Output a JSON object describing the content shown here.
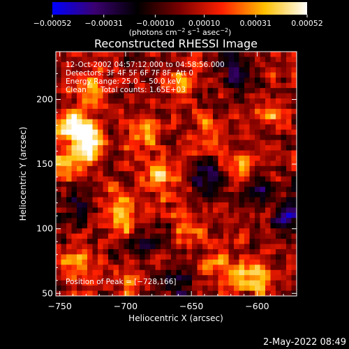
{
  "chart_data": {
    "type": "heatmap",
    "title": "Reconstructed RHESSI Image",
    "xlabel": "Heliocentric X (arcsec)",
    "ylabel": "Heliocentric Y (arcsec)",
    "xlim": [
      -753,
      -570
    ],
    "ylim": [
      48,
      237
    ],
    "x_ticks": [
      -750,
      -700,
      -650,
      -600
    ],
    "y_ticks": [
      50,
      100,
      150,
      200
    ],
    "x_tick_labels": [
      "−750",
      "−700",
      "−650",
      "−600"
    ],
    "y_tick_labels": [
      "50",
      "100",
      "150",
      "200"
    ],
    "colorbar": {
      "range": [
        -0.00052,
        0.00052
      ],
      "ticks": [
        -0.00052,
        -0.00031,
        -0.0001,
        0.0001,
        0.00031,
        0.00052
      ],
      "tick_labels": [
        "−0.00052",
        "−0.00031",
        "−0.00010",
        "0.00010",
        "0.00031",
        "0.00052"
      ],
      "colors": [
        "#0000ff",
        "#3a0070",
        "#000000",
        "#7a0000",
        "#ff2000",
        "#ffc000",
        "#ffffff"
      ],
      "unit_line1": "(photons cm",
      "unit_exp1": "−2",
      "unit_mid1": " s",
      "unit_exp2": "−1",
      "unit_mid2": " asec",
      "unit_exp3": "−2",
      "unit_end": ")"
    },
    "annotations": {
      "time_range": "12-Oct-2002 04:57:12.000 to 04:58:56.000",
      "detectors": "Detectors: 3F 4F 5F 6F 7F 8F, Att 0",
      "energy": "Energy Range: 25.0 − 50.0 keV",
      "method": "Clean",
      "counts": "Total counts: 1.65E+03",
      "peak": "Position of Peak = [−728,166]"
    },
    "grid_cols": 46,
    "grid_rows": 47,
    "hot_spots": [
      {
        "x": -728,
        "y": 166,
        "value": 0.00052
      },
      {
        "x": -738,
        "y": 178,
        "value": 0.00045
      },
      {
        "x": -745,
        "y": 150,
        "value": 0.00038
      },
      {
        "x": -688,
        "y": 172,
        "value": 0.0003
      },
      {
        "x": -672,
        "y": 140,
        "value": 0.00028
      },
      {
        "x": -705,
        "y": 120,
        "value": 0.00026
      },
      {
        "x": -640,
        "y": 175,
        "value": 0.00024
      },
      {
        "x": -612,
        "y": 150,
        "value": 0.00027
      },
      {
        "x": -590,
        "y": 190,
        "value": 0.00022
      },
      {
        "x": -600,
        "y": 62,
        "value": 0.0004
      },
      {
        "x": -625,
        "y": 70,
        "value": 0.0003
      },
      {
        "x": -700,
        "y": 60,
        "value": 0.00025
      },
      {
        "x": -738,
        "y": 72,
        "value": 0.00028
      },
      {
        "x": -725,
        "y": 210,
        "value": 0.0003
      },
      {
        "x": -660,
        "y": 215,
        "value": 0.0002
      },
      {
        "x": -700,
        "y": 100,
        "value": 0.00032
      },
      {
        "x": -650,
        "y": 100,
        "value": 0.0002
      },
      {
        "x": -586,
        "y": 115,
        "value": 0.00018
      }
    ],
    "cold_spots": [
      {
        "x": -580,
        "y": 112,
        "value": -0.00045
      },
      {
        "x": -690,
        "y": 90,
        "value": -0.0003
      },
      {
        "x": -640,
        "y": 140,
        "value": -0.00025
      },
      {
        "x": -615,
        "y": 225,
        "value": -0.00028
      },
      {
        "x": -735,
        "y": 120,
        "value": -0.00022
      },
      {
        "x": -660,
        "y": 58,
        "value": -0.00024
      },
      {
        "x": -600,
        "y": 130,
        "value": -0.0002
      }
    ]
  },
  "footer": {
    "timestamp": "2-May-2022 08:49"
  }
}
